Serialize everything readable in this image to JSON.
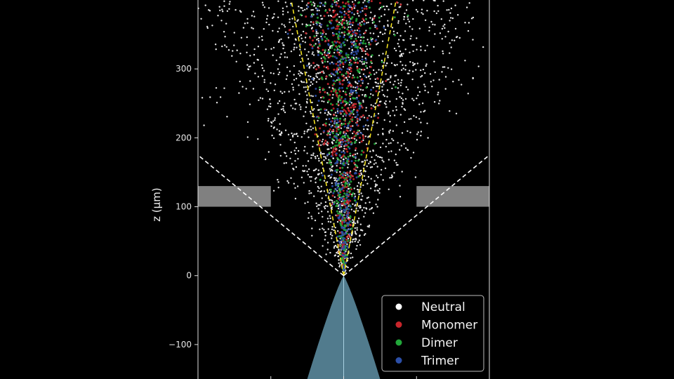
{
  "chart_data": {
    "type": "scatter",
    "ylabel": "z (μm)",
    "ylim": [
      -150,
      400
    ],
    "xlim": [
      -200,
      200
    ],
    "y_ticks": [
      -100,
      0,
      100,
      200,
      300
    ],
    "grid": false,
    "legend_position": "bottom-right",
    "background": "#000000",
    "series": [
      {
        "name": "Neutral",
        "color": "#ffffff",
        "count": 1700,
        "cone_half_width_at_400": 150,
        "spread_frac": 0.75
      },
      {
        "name": "Monomer",
        "color": "#c8252b",
        "count": 450,
        "cone_half_width_at_400": 72,
        "spread_frac": 0.4
      },
      {
        "name": "Dimer",
        "color": "#22a83a",
        "count": 380,
        "cone_half_width_at_400": 72,
        "spread_frac": 0.4
      },
      {
        "name": "Trimer",
        "color": "#2c4fa8",
        "count": 300,
        "cone_half_width_at_400": 72,
        "spread_frac": 0.4
      }
    ],
    "annotations": {
      "inner_cone": {
        "style": "dashed",
        "color": "#f0e020",
        "half_width_at_400": 72
      },
      "outer_cone": {
        "style": "dashed",
        "color": "#ffffff",
        "half_width_at_175": 200
      },
      "extractor_plates": {
        "color": "#808080",
        "z_range": [
          100,
          130
        ],
        "inner_edge": 100,
        "outer_edge": 200
      },
      "emitter_tip": {
        "color": "#5f90a6",
        "tip_z": 0,
        "base_half_width": 50,
        "base_z": -150
      }
    }
  }
}
